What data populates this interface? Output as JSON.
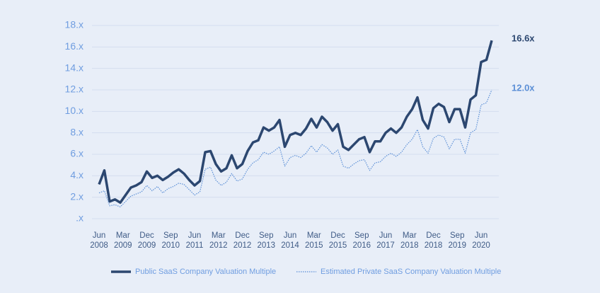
{
  "chart_data": {
    "type": "line",
    "x": [
      "2008-06",
      "2008-08",
      "2008-10",
      "2008-12",
      "2009-02",
      "2009-04",
      "2009-06",
      "2009-08",
      "2009-10",
      "2009-12",
      "2010-02",
      "2010-04",
      "2010-06",
      "2010-08",
      "2010-10",
      "2010-12",
      "2011-02",
      "2011-04",
      "2011-06",
      "2011-08",
      "2011-10",
      "2011-12",
      "2012-02",
      "2012-04",
      "2012-06",
      "2012-08",
      "2012-10",
      "2012-12",
      "2013-02",
      "2013-04",
      "2013-06",
      "2013-08",
      "2013-10",
      "2013-12",
      "2014-02",
      "2014-04",
      "2014-06",
      "2014-08",
      "2014-10",
      "2014-12",
      "2015-02",
      "2015-04",
      "2015-06",
      "2015-08",
      "2015-10",
      "2015-12",
      "2016-02",
      "2016-04",
      "2016-06",
      "2016-08",
      "2016-10",
      "2016-12",
      "2017-02",
      "2017-04",
      "2017-06",
      "2017-08",
      "2017-10",
      "2017-12",
      "2018-02",
      "2018-04",
      "2018-06",
      "2018-08",
      "2018-10",
      "2018-12",
      "2019-02",
      "2019-04",
      "2019-06",
      "2019-08",
      "2019-10",
      "2019-12",
      "2020-02",
      "2020-04",
      "2020-06",
      "2020-08",
      "2020-10"
    ],
    "series": [
      {
        "name": "Public SaaS Company Valuation Multiple",
        "color": "#2c4770",
        "style": "solid",
        "end_label": "16.6x",
        "values": [
          3.2,
          4.5,
          1.6,
          1.8,
          1.5,
          2.2,
          2.9,
          3.1,
          3.4,
          4.4,
          3.8,
          4.0,
          3.6,
          3.9,
          4.3,
          4.6,
          4.2,
          3.6,
          3.1,
          3.5,
          6.2,
          6.3,
          5.1,
          4.4,
          4.7,
          5.9,
          4.7,
          5.1,
          6.3,
          7.1,
          7.3,
          8.5,
          8.2,
          8.5,
          9.2,
          6.7,
          7.8,
          8.0,
          7.8,
          8.4,
          9.3,
          8.5,
          9.5,
          9.0,
          8.2,
          8.8,
          6.7,
          6.4,
          6.9,
          7.4,
          7.6,
          6.2,
          7.2,
          7.2,
          8.0,
          8.4,
          8.0,
          8.5,
          9.5,
          10.2,
          11.3,
          9.2,
          8.4,
          10.3,
          10.7,
          10.4,
          9.0,
          10.2,
          10.2,
          8.5,
          11.1,
          11.5,
          14.6,
          14.8,
          16.6
        ]
      },
      {
        "name": "Estimated Private SaaS Company Valuation Multiple",
        "color": "#5b8fd6",
        "style": "dotted",
        "end_label": "12.0x",
        "values": [
          2.4,
          2.6,
          1.2,
          1.3,
          1.1,
          1.6,
          2.1,
          2.3,
          2.5,
          3.1,
          2.6,
          3.0,
          2.4,
          2.8,
          3.0,
          3.3,
          3.2,
          2.7,
          2.2,
          2.5,
          4.6,
          4.8,
          3.6,
          3.1,
          3.4,
          4.2,
          3.5,
          3.7,
          4.6,
          5.2,
          5.5,
          6.2,
          6.0,
          6.3,
          6.7,
          4.9,
          5.7,
          5.9,
          5.7,
          6.1,
          6.8,
          6.2,
          6.9,
          6.6,
          6.0,
          6.4,
          4.9,
          4.7,
          5.1,
          5.4,
          5.5,
          4.5,
          5.2,
          5.3,
          5.8,
          6.1,
          5.8,
          6.2,
          6.9,
          7.4,
          8.3,
          6.7,
          6.1,
          7.5,
          7.8,
          7.6,
          6.5,
          7.4,
          7.4,
          6.1,
          8.0,
          8.3,
          10.6,
          10.8,
          12.0
        ]
      }
    ],
    "xlim": [
      "2008-06",
      "2020-10"
    ],
    "xticks": [
      {
        "value": "2008-06",
        "label": "Jun\n2008"
      },
      {
        "value": "2009-03",
        "label": "Mar\n2009"
      },
      {
        "value": "2009-12",
        "label": "Dec\n2009"
      },
      {
        "value": "2010-09",
        "label": "Sep\n2010"
      },
      {
        "value": "2011-06",
        "label": "Jun\n2011"
      },
      {
        "value": "2012-03",
        "label": "Mar\n2012"
      },
      {
        "value": "2012-12",
        "label": "Dec\n2012"
      },
      {
        "value": "2013-09",
        "label": "Sep\n2013"
      },
      {
        "value": "2014-06",
        "label": "Jun\n2014"
      },
      {
        "value": "2015-03",
        "label": "Mar\n2015"
      },
      {
        "value": "2015-12",
        "label": "Dec\n2015"
      },
      {
        "value": "2016-09",
        "label": "Sep\n2016"
      },
      {
        "value": "2017-06",
        "label": "Jun\n2017"
      },
      {
        "value": "2018-03",
        "label": "Mar\n2018"
      },
      {
        "value": "2018-12",
        "label": "Dec\n2018"
      },
      {
        "value": "2019-09",
        "label": "Sep\n2019"
      },
      {
        "value": "2020-06",
        "label": "Jun\n2020"
      }
    ],
    "ylim": [
      0,
      18
    ],
    "yticks": [
      {
        "value": 0,
        "label": ".x"
      },
      {
        "value": 2,
        "label": "2.x"
      },
      {
        "value": 4,
        "label": "4.x"
      },
      {
        "value": 6,
        "label": "6.x"
      },
      {
        "value": 8,
        "label": "8.x"
      },
      {
        "value": 10,
        "label": "10.x"
      },
      {
        "value": 12,
        "label": "12.x"
      },
      {
        "value": 14,
        "label": "14.x"
      },
      {
        "value": 16,
        "label": "16.x"
      },
      {
        "value": 18,
        "label": "18.x"
      }
    ],
    "grid": true
  }
}
